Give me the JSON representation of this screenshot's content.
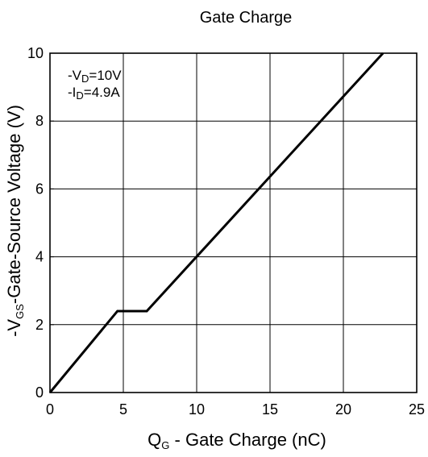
{
  "chart_data": {
    "type": "line",
    "title": "Gate Charge",
    "xlabel": {
      "prefix": "Q",
      "subscript": "G",
      "suffix": " - Gate Charge (nC)"
    },
    "ylabel": {
      "prefix": "-V",
      "subscript": "GS",
      "suffix": "-Gate-Source Voltage (V)"
    },
    "xlim": [
      0,
      25
    ],
    "ylim": [
      0,
      10
    ],
    "xticks": [
      0,
      5,
      10,
      15,
      20,
      25
    ],
    "yticks": [
      0,
      2,
      4,
      6,
      8,
      10
    ],
    "xtick_labels": [
      "0",
      "5",
      "10",
      "15",
      "20",
      "25"
    ],
    "ytick_labels": [
      "0",
      "2",
      "4",
      "6",
      "8",
      "10"
    ],
    "grid": true,
    "annotations": [
      {
        "prefix": "-V",
        "subscript": "D",
        "suffix": "=10V"
      },
      {
        "prefix": "-I",
        "subscript": "D",
        "suffix": "=4.9A"
      }
    ],
    "series": [
      {
        "points": [
          {
            "x": 0,
            "y": 0
          },
          {
            "x": 4.6,
            "y": 2.4
          },
          {
            "x": 6.6,
            "y": 2.4
          },
          {
            "x": 22.7,
            "y": 10
          }
        ],
        "color": "#000000"
      }
    ]
  }
}
